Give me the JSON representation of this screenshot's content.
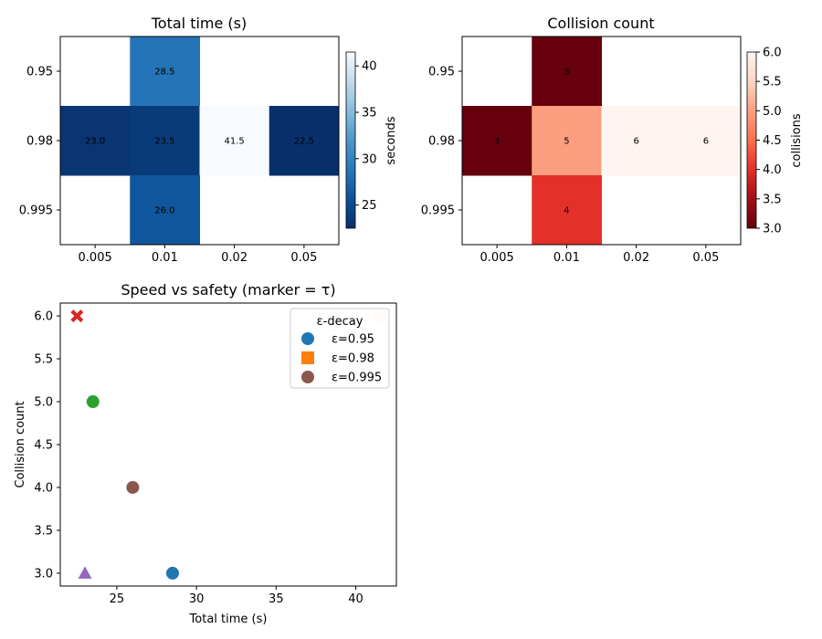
{
  "chart_data": [
    {
      "type": "heatmap",
      "title": "Total time (s)",
      "x_categories": [
        "0.005",
        "0.01",
        "0.02",
        "0.05"
      ],
      "y_categories": [
        "0.95",
        "0.98",
        "0.995"
      ],
      "values": [
        [
          null,
          28.5,
          null,
          null
        ],
        [
          23.0,
          23.5,
          41.5,
          22.5
        ],
        [
          null,
          26.0,
          null,
          null
        ]
      ],
      "cell_labels": [
        [
          "",
          "28.5",
          "",
          ""
        ],
        [
          "23.0",
          "23.5",
          "41.5",
          "22.5"
        ],
        [
          "",
          "26.0",
          "",
          ""
        ]
      ],
      "colormap": "Blues_r",
      "colorbar": {
        "label": "seconds",
        "range": [
          22.5,
          41.5
        ],
        "ticks": [
          "25",
          "30",
          "35",
          "40"
        ]
      }
    },
    {
      "type": "heatmap",
      "title": "Collision count",
      "x_categories": [
        "0.005",
        "0.01",
        "0.02",
        "0.05"
      ],
      "y_categories": [
        "0.95",
        "0.98",
        "0.995"
      ],
      "values": [
        [
          null,
          3,
          null,
          null
        ],
        [
          3,
          5,
          6,
          6
        ],
        [
          null,
          4,
          null,
          null
        ]
      ],
      "cell_labels": [
        [
          "",
          "3",
          "",
          ""
        ],
        [
          "3",
          "5",
          "6",
          "6"
        ],
        [
          "",
          "4",
          "",
          ""
        ]
      ],
      "colormap": "Reds_r",
      "colorbar": {
        "label": "collisions",
        "range": [
          3,
          6
        ],
        "ticks": [
          "3.0",
          "3.5",
          "4.0",
          "4.5",
          "5.0",
          "5.5",
          "6.0"
        ]
      }
    },
    {
      "type": "scatter",
      "title": "Speed vs safety (marker = τ)",
      "xlabel": "Total time (s)",
      "ylabel": "Collision count",
      "xlim": [
        21.45,
        42.55
      ],
      "ylim": [
        2.85,
        6.15
      ],
      "x_ticks": [
        "25",
        "30",
        "35",
        "40"
      ],
      "y_ticks": [
        "3.0",
        "3.5",
        "4.0",
        "4.5",
        "5.0",
        "5.5",
        "6.0"
      ],
      "points": [
        {
          "x": 28.5,
          "y": 3,
          "marker": "circle",
          "color": "#1f77b4"
        },
        {
          "x": 23.0,
          "y": 3,
          "marker": "triangle",
          "color": "#9467bd"
        },
        {
          "x": 23.5,
          "y": 5,
          "marker": "circle",
          "color": "#2ca02c"
        },
        {
          "x": 41.5,
          "y": 6,
          "marker": "square",
          "color": "#ffe4cc"
        },
        {
          "x": 22.5,
          "y": 6,
          "marker": "x",
          "color": "#d62728"
        },
        {
          "x": 26.0,
          "y": 4,
          "marker": "circle",
          "color": "#8c564b"
        }
      ],
      "legend": {
        "title": "ε-decay",
        "placement": "top-right",
        "entries": [
          {
            "label": "ε=0.95",
            "marker": "circle",
            "color": "#1f77b4"
          },
          {
            "label": "ε=0.98",
            "marker": "square",
            "color": "#ff7f0e"
          },
          {
            "label": "ε=0.995",
            "marker": "circle",
            "color": "#8c564b"
          }
        ]
      }
    }
  ]
}
